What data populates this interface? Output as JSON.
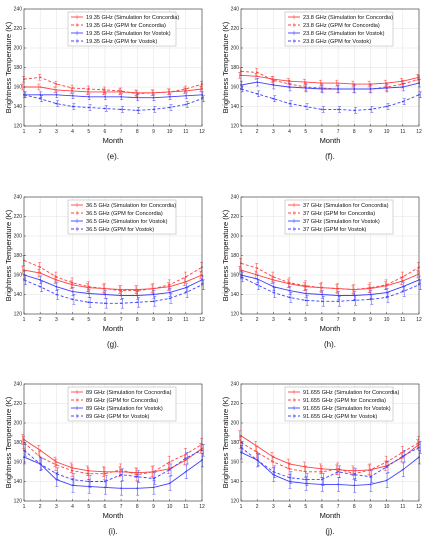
{
  "chart_data": [
    {
      "type": "line",
      "caption": "(e).",
      "xlabel": "Month",
      "ylabel": "Brightness Temperature (K)",
      "x": [
        1,
        2,
        3,
        4,
        5,
        6,
        7,
        8,
        9,
        10,
        11,
        12
      ],
      "xlim": [
        1,
        12
      ],
      "ylim": [
        120,
        240
      ],
      "yticks": [
        120,
        140,
        160,
        180,
        200,
        220,
        240
      ],
      "grid": true,
      "legend": "top",
      "series": [
        {
          "name": "19.35 GHz (Simulation for Concordia)",
          "color": "#ff4040",
          "style": "solid",
          "values": [
            160,
            160,
            157,
            156,
            155,
            155,
            155,
            154,
            154,
            155,
            156,
            158
          ],
          "errors": [
            3,
            3,
            3,
            3,
            3,
            3,
            3,
            3,
            3,
            3,
            3,
            3
          ]
        },
        {
          "name": "19.35 GHz (GPM for Concordia)",
          "color": "#ff4040",
          "style": "dashed",
          "values": [
            168,
            170,
            163,
            159,
            158,
            157,
            156,
            153,
            154,
            155,
            158,
            163
          ],
          "errors": [
            3,
            3,
            3,
            3,
            3,
            3,
            3,
            3,
            3,
            3,
            3,
            3
          ]
        },
        {
          "name": "19.35 GHz (Simulation for Vostok)",
          "color": "#4040ff",
          "style": "solid",
          "values": [
            152,
            152,
            152,
            151,
            150,
            150,
            150,
            149,
            149,
            150,
            151,
            152
          ],
          "errors": [
            3,
            3,
            3,
            3,
            3,
            3,
            3,
            3,
            3,
            3,
            3,
            3
          ]
        },
        {
          "name": "19.35 GHz (GPM for Vostok)",
          "color": "#4040ff",
          "style": "dashed",
          "values": [
            152,
            148,
            143,
            140,
            139,
            138,
            137,
            136,
            137,
            139,
            142,
            148
          ],
          "errors": [
            3,
            3,
            3,
            3,
            3,
            3,
            3,
            3,
            3,
            3,
            3,
            3
          ]
        }
      ]
    },
    {
      "type": "line",
      "caption": "(f).",
      "xlabel": "Month",
      "ylabel": "Brightness Temperature (K)",
      "x": [
        1,
        2,
        3,
        4,
        5,
        6,
        7,
        8,
        9,
        10,
        11,
        12
      ],
      "xlim": [
        1,
        12
      ],
      "ylim": [
        120,
        240
      ],
      "yticks": [
        120,
        140,
        160,
        180,
        200,
        220,
        240
      ],
      "grid": true,
      "legend": "top",
      "series": [
        {
          "name": "23.8 GHz (Simulation for Concordia)",
          "color": "#ff4040",
          "style": "solid",
          "values": [
            172,
            171,
            168,
            166,
            165,
            164,
            164,
            163,
            163,
            164,
            166,
            170
          ],
          "errors": [
            3,
            3,
            3,
            3,
            3,
            3,
            3,
            3,
            3,
            3,
            3,
            3
          ]
        },
        {
          "name": "23.8 GHz (GPM for Concordia)",
          "color": "#ff4040",
          "style": "dashed",
          "values": [
            176,
            175,
            167,
            163,
            160,
            159,
            158,
            158,
            158,
            160,
            163,
            168
          ],
          "errors": [
            4,
            4,
            4,
            4,
            4,
            4,
            4,
            4,
            4,
            4,
            4,
            4
          ]
        },
        {
          "name": "23.8 GHz (Simulation for Vostok)",
          "color": "#4040ff",
          "style": "solid",
          "values": [
            162,
            165,
            162,
            160,
            159,
            158,
            158,
            158,
            158,
            159,
            160,
            164
          ],
          "errors": [
            4,
            4,
            4,
            4,
            4,
            4,
            4,
            4,
            4,
            4,
            4,
            4
          ]
        },
        {
          "name": "23.8 GHz (GPM for Vostok)",
          "color": "#4040ff",
          "style": "dashed",
          "values": [
            158,
            153,
            148,
            143,
            140,
            137,
            137,
            136,
            137,
            140,
            145,
            152
          ],
          "errors": [
            3,
            3,
            3,
            3,
            3,
            3,
            3,
            3,
            3,
            3,
            3,
            3
          ]
        }
      ]
    },
    {
      "type": "line",
      "caption": "(g).",
      "xlabel": "Month",
      "ylabel": "Brightness Temperature (K)",
      "x": [
        1,
        2,
        3,
        4,
        5,
        6,
        7,
        8,
        9,
        10,
        11,
        12
      ],
      "xlim": [
        1,
        12
      ],
      "ylim": [
        120,
        240
      ],
      "yticks": [
        120,
        140,
        160,
        180,
        200,
        220,
        240
      ],
      "grid": true,
      "legend": "top",
      "series": [
        {
          "name": "36.5 GHz (Simulation for Concordia)",
          "color": "#ff4040",
          "style": "solid",
          "values": [
            165,
            162,
            155,
            150,
            147,
            146,
            145,
            145,
            146,
            148,
            153,
            160
          ],
          "errors": [
            4,
            4,
            4,
            4,
            4,
            4,
            4,
            4,
            4,
            4,
            4,
            4
          ]
        },
        {
          "name": "36.5 GHz (GPM for Concordia)",
          "color": "#ff4040",
          "style": "dashed",
          "values": [
            175,
            168,
            158,
            152,
            148,
            146,
            144,
            144,
            146,
            150,
            158,
            168
          ],
          "errors": [
            5,
            5,
            5,
            5,
            5,
            5,
            5,
            5,
            5,
            5,
            5,
            5
          ]
        },
        {
          "name": "36.5 GHz (Simulation for Vostok)",
          "color": "#4040ff",
          "style": "solid",
          "values": [
            160,
            155,
            148,
            143,
            141,
            140,
            139,
            139,
            140,
            142,
            147,
            155
          ],
          "errors": [
            4,
            4,
            4,
            4,
            4,
            4,
            4,
            4,
            4,
            4,
            4,
            4
          ]
        },
        {
          "name": "36.5 GHz (GPM for Vostok)",
          "color": "#4040ff",
          "style": "dashed",
          "values": [
            155,
            148,
            140,
            135,
            132,
            131,
            131,
            132,
            133,
            136,
            142,
            150
          ],
          "errors": [
            5,
            5,
            5,
            5,
            5,
            5,
            5,
            5,
            5,
            5,
            5,
            5
          ]
        }
      ]
    },
    {
      "type": "line",
      "caption": "(h).",
      "xlabel": "Month",
      "ylabel": "Brightness Temperature (K)",
      "x": [
        1,
        2,
        3,
        4,
        5,
        6,
        7,
        8,
        9,
        10,
        11,
        12
      ],
      "xlim": [
        1,
        12
      ],
      "ylim": [
        120,
        240
      ],
      "yticks": [
        120,
        140,
        160,
        180,
        200,
        220,
        240
      ],
      "grid": true,
      "legend": "top",
      "series": [
        {
          "name": "37 GHz (Simulation for Concordia)",
          "color": "#ff4040",
          "style": "solid",
          "values": [
            165,
            160,
            155,
            151,
            148,
            147,
            146,
            145,
            146,
            149,
            154,
            161
          ],
          "errors": [
            4,
            4,
            4,
            4,
            4,
            4,
            4,
            4,
            4,
            4,
            4,
            4
          ]
        },
        {
          "name": "37 GHz (GPM for Concordia)",
          "color": "#ff4040",
          "style": "dashed",
          "values": [
            172,
            167,
            158,
            152,
            149,
            147,
            146,
            145,
            147,
            150,
            158,
            168
          ],
          "errors": [
            5,
            5,
            5,
            5,
            5,
            5,
            5,
            5,
            5,
            5,
            5,
            5
          ]
        },
        {
          "name": "37 GHz (Simulation for Vostok)",
          "color": "#4040ff",
          "style": "solid",
          "values": [
            160,
            156,
            148,
            144,
            141,
            140,
            139,
            139,
            140,
            142,
            148,
            155
          ],
          "errors": [
            4,
            4,
            4,
            4,
            4,
            4,
            4,
            4,
            4,
            4,
            4,
            4
          ]
        },
        {
          "name": "37 GHz (GPM for Vostok)",
          "color": "#4040ff",
          "style": "dashed",
          "values": [
            158,
            150,
            142,
            137,
            134,
            133,
            133,
            134,
            135,
            137,
            143,
            150
          ],
          "errors": [
            5,
            5,
            5,
            5,
            5,
            5,
            5,
            5,
            5,
            5,
            5,
            5
          ]
        }
      ]
    },
    {
      "type": "line",
      "caption": "(i).",
      "xlabel": "Month",
      "ylabel": "Brightness Temperature (K)",
      "x": [
        1,
        2,
        3,
        4,
        5,
        6,
        7,
        8,
        9,
        10,
        11,
        12
      ],
      "xlim": [
        1,
        12
      ],
      "ylim": [
        120,
        240
      ],
      "yticks": [
        120,
        140,
        160,
        180,
        200,
        220,
        240
      ],
      "grid": true,
      "legend": "top",
      "series": [
        {
          "name": "89 GHz (Simulation for Cocnordia)",
          "color": "#ff4040",
          "style": "solid",
          "values": [
            183,
            172,
            160,
            154,
            151,
            150,
            150,
            149,
            150,
            153,
            162,
            174
          ],
          "errors": [
            5,
            5,
            5,
            5,
            5,
            5,
            5,
            5,
            5,
            5,
            5,
            5
          ]
        },
        {
          "name": "89 GHz (GPM for Concordia)",
          "color": "#ff4040",
          "style": "dashed",
          "values": [
            180,
            165,
            157,
            151,
            148,
            148,
            152,
            147,
            150,
            160,
            168,
            178
          ],
          "errors": [
            6,
            6,
            6,
            6,
            6,
            6,
            6,
            6,
            6,
            6,
            6,
            6
          ]
        },
        {
          "name": "89 GHz (Simulation for Vostok)",
          "color": "#4040ff",
          "style": "solid",
          "values": [
            165,
            158,
            142,
            136,
            135,
            134,
            133,
            133,
            134,
            138,
            150,
            162
          ],
          "errors": [
            7,
            7,
            7,
            7,
            7,
            7,
            7,
            7,
            7,
            7,
            7,
            7
          ]
        },
        {
          "name": "89 GHz (GPM for Vostok)",
          "color": "#4040ff",
          "style": "dashed",
          "values": [
            172,
            158,
            148,
            142,
            140,
            140,
            147,
            145,
            143,
            152,
            164,
            172
          ],
          "errors": [
            6,
            6,
            6,
            6,
            6,
            6,
            6,
            6,
            6,
            6,
            6,
            6
          ]
        }
      ]
    },
    {
      "type": "line",
      "caption": "(j).",
      "xlabel": "Month",
      "ylabel": "Brightness Temperature (K)",
      "x": [
        1,
        2,
        3,
        4,
        5,
        6,
        7,
        8,
        9,
        10,
        11,
        12
      ],
      "xlim": [
        1,
        12
      ],
      "ylim": [
        120,
        240
      ],
      "yticks": [
        120,
        140,
        160,
        180,
        200,
        220,
        240
      ],
      "grid": true,
      "legend": "top",
      "series": [
        {
          "name": "91.655 GHz (Simulation for Concordia)",
          "color": "#ff4040",
          "style": "solid",
          "values": [
            187,
            176,
            165,
            158,
            155,
            153,
            152,
            151,
            152,
            156,
            165,
            178
          ],
          "errors": [
            5,
            5,
            5,
            5,
            5,
            5,
            5,
            5,
            5,
            5,
            5,
            5
          ]
        },
        {
          "name": "91.655 GHz (GPM for Concordia)",
          "color": "#ff4040",
          "style": "dashed",
          "values": [
            180,
            170,
            160,
            153,
            150,
            150,
            153,
            148,
            152,
            160,
            170,
            180
          ],
          "errors": [
            6,
            6,
            6,
            6,
            6,
            6,
            6,
            6,
            6,
            6,
            6,
            6
          ]
        },
        {
          "name": "91.655 GHz (Simulation for Vostok)",
          "color": "#4040ff",
          "style": "solid",
          "values": [
            170,
            162,
            147,
            140,
            138,
            137,
            137,
            136,
            137,
            141,
            152,
            165
          ],
          "errors": [
            7,
            7,
            7,
            7,
            7,
            7,
            7,
            7,
            7,
            7,
            7,
            7
          ]
        },
        {
          "name": "91.655 GHz (GPM for Vostok)",
          "color": "#4040ff",
          "style": "dashed",
          "values": [
            175,
            162,
            150,
            144,
            142,
            142,
            150,
            147,
            145,
            155,
            166,
            175
          ],
          "errors": [
            6,
            6,
            6,
            6,
            6,
            6,
            6,
            6,
            6,
            6,
            6,
            6
          ]
        }
      ]
    }
  ]
}
